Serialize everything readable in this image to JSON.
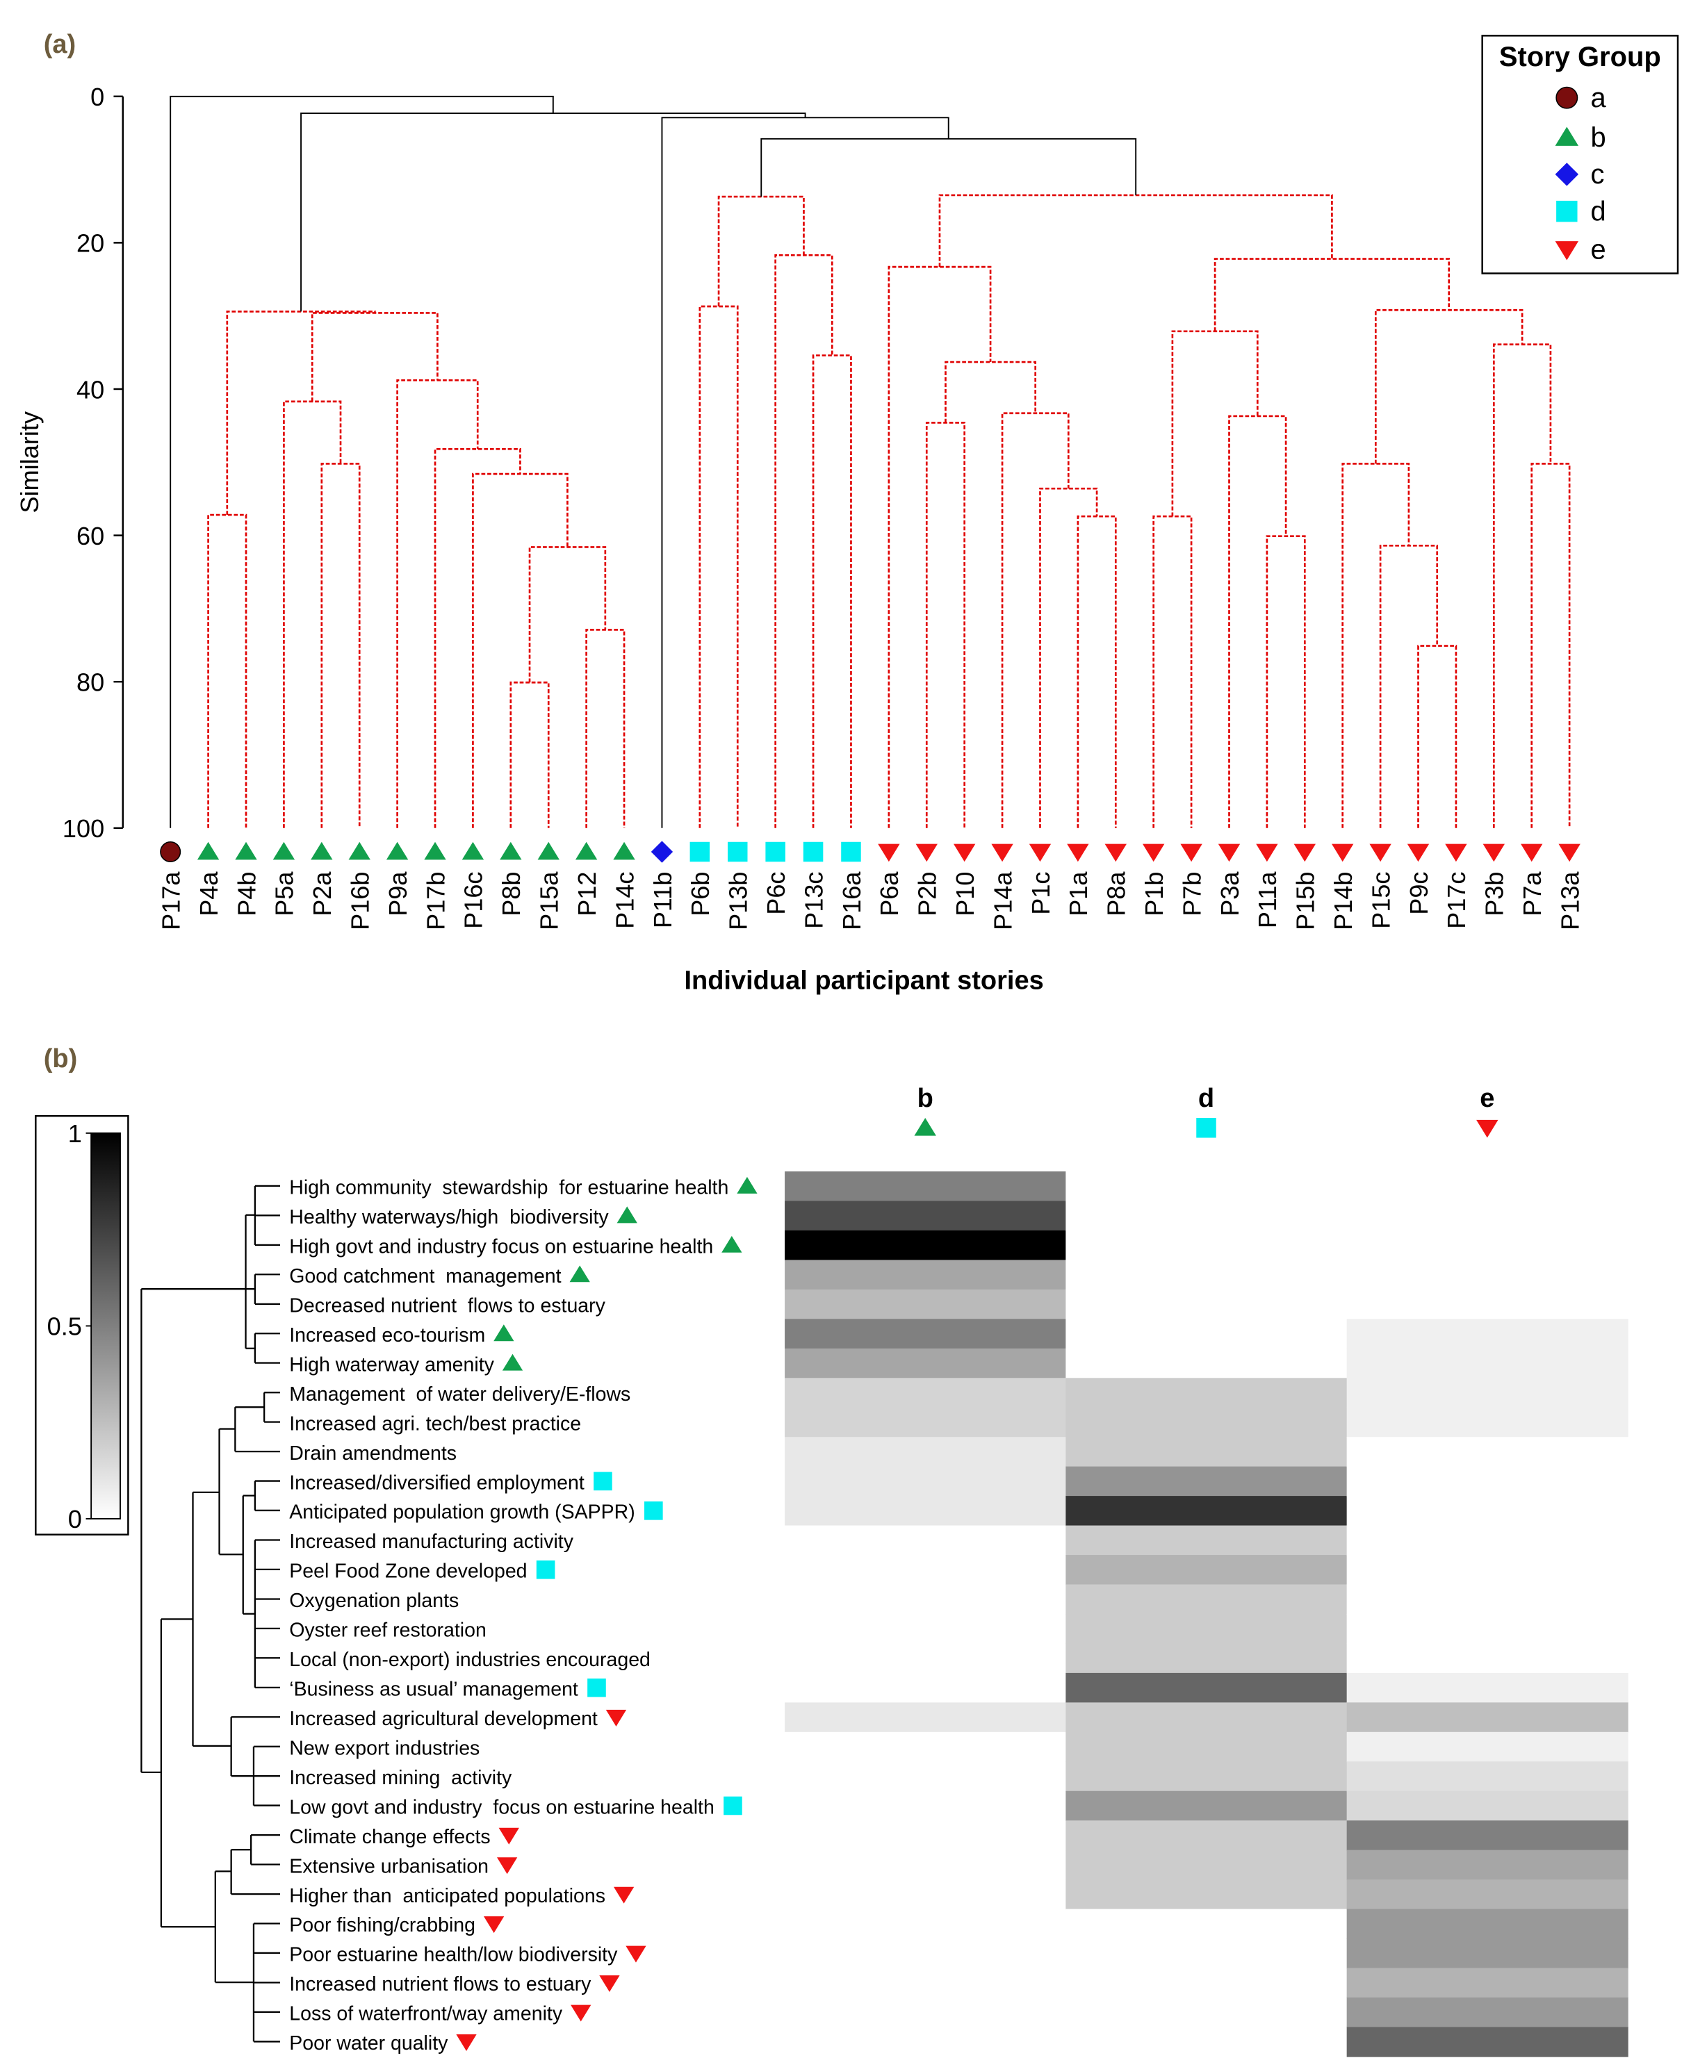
{
  "chart_data": [
    {
      "type": "dendrogram",
      "panel_label": "(a)",
      "ylabel": "Similarity",
      "xlabel": "Individual participant stories",
      "ylim": [
        0,
        100
      ],
      "yticks": [
        0,
        20,
        40,
        60,
        80,
        100
      ],
      "categories": [
        "P17a",
        "P4a",
        "P4b",
        "P5a",
        "P2a",
        "P16b",
        "P9a",
        "P17b",
        "P16c",
        "P8b",
        "P15a",
        "P12",
        "P14c",
        "P11b",
        "P6b",
        "P13b",
        "P6c",
        "P13c",
        "P16a",
        "P6a",
        "P2b",
        "P10",
        "P14a",
        "P1c",
        "P1a",
        "P8a",
        "P1b",
        "P7b",
        "P3a",
        "P11a",
        "P15b",
        "P14b",
        "P15c",
        "P9c",
        "P17c",
        "P3b",
        "P7a",
        "P13a"
      ],
      "leaf_groups": [
        "a",
        "b",
        "b",
        "b",
        "b",
        "b",
        "b",
        "b",
        "b",
        "b",
        "b",
        "b",
        "b",
        "c",
        "d",
        "d",
        "d",
        "d",
        "d",
        "e",
        "e",
        "e",
        "e",
        "e",
        "e",
        "e",
        "e",
        "e",
        "e",
        "e",
        "e",
        "e",
        "e",
        "e",
        "e",
        "e",
        "e",
        "e"
      ],
      "legend": {
        "title": "Story Group",
        "loc": "upper right"
      },
      "groups": [
        {
          "name": "a",
          "color": "#7a0d0d",
          "marker": "circle"
        },
        {
          "name": "b",
          "color": "#12a04c",
          "marker": "triangle-up"
        },
        {
          "name": "c",
          "color": "#1515e6",
          "marker": "diamond"
        },
        {
          "name": "d",
          "color": "#00eef0",
          "marker": "square"
        },
        {
          "name": "e",
          "color": "#f01414",
          "marker": "triangle-down"
        }
      ],
      "merges": [
        {
          "left": 1,
          "right": 2,
          "height": 57.2,
          "color": "#e00000",
          "dashed": true
        },
        {
          "left": 4,
          "right": 5,
          "height": 50.2,
          "color": "#e00000",
          "dashed": true
        },
        {
          "left": 3,
          "right": 39,
          "height": 41.7,
          "color": "#e00000",
          "dashed": true
        },
        {
          "left": 9,
          "right": 10,
          "height": 80.1,
          "color": "#e00000",
          "dashed": true
        },
        {
          "left": 11,
          "right": 12,
          "height": 72.9,
          "color": "#e00000",
          "dashed": true
        },
        {
          "left": 41,
          "right": 42,
          "height": 61.6,
          "color": "#e00000",
          "dashed": true
        },
        {
          "left": 8,
          "right": 43,
          "height": 51.6,
          "color": "#e00000",
          "dashed": true
        },
        {
          "left": 7,
          "right": 44,
          "height": 48.2,
          "color": "#e00000",
          "dashed": true
        },
        {
          "left": 6,
          "right": 45,
          "height": 38.8,
          "color": "#e00000",
          "dashed": true
        },
        {
          "left": 40,
          "right": 46,
          "height": 29.6,
          "color": "#e00000",
          "dashed": true
        },
        {
          "left": 38,
          "right": 47,
          "height": 29.4,
          "color": "#e00000",
          "dashed": true
        },
        {
          "left": 14,
          "right": 15,
          "height": 28.7,
          "color": "#e00000",
          "dashed": true
        },
        {
          "left": 17,
          "right": 18,
          "height": 35.4,
          "color": "#e00000",
          "dashed": true
        },
        {
          "left": 16,
          "right": 50,
          "height": 21.7,
          "color": "#e00000",
          "dashed": true
        },
        {
          "left": 49,
          "right": 51,
          "height": 13.7,
          "color": "#e00000",
          "dashed": true
        },
        {
          "left": 20,
          "right": 21,
          "height": 44.6,
          "color": "#e00000",
          "dashed": true
        },
        {
          "left": 24,
          "right": 25,
          "height": 57.4,
          "color": "#e00000",
          "dashed": true
        },
        {
          "left": 23,
          "right": 54,
          "height": 53.6,
          "color": "#e00000",
          "dashed": true
        },
        {
          "left": 22,
          "right": 55,
          "height": 43.3,
          "color": "#e00000",
          "dashed": true
        },
        {
          "left": 53,
          "right": 56,
          "height": 36.3,
          "color": "#e00000",
          "dashed": true
        },
        {
          "left": 19,
          "right": 57,
          "height": 23.3,
          "color": "#e00000",
          "dashed": true
        },
        {
          "left": 26,
          "right": 27,
          "height": 57.4,
          "color": "#e00000",
          "dashed": true
        },
        {
          "left": 29,
          "right": 30,
          "height": 60.1,
          "color": "#e00000",
          "dashed": true
        },
        {
          "left": 28,
          "right": 60,
          "height": 43.7,
          "color": "#e00000",
          "dashed": true
        },
        {
          "left": 59,
          "right": 61,
          "height": 32.1,
          "color": "#e00000",
          "dashed": true
        },
        {
          "left": 33,
          "right": 34,
          "height": 75.1,
          "color": "#e00000",
          "dashed": true
        },
        {
          "left": 32,
          "right": 63,
          "height": 61.4,
          "color": "#e00000",
          "dashed": true
        },
        {
          "left": 31,
          "right": 64,
          "height": 50.2,
          "color": "#e00000",
          "dashed": true
        },
        {
          "left": 36,
          "right": 37,
          "height": 50.2,
          "color": "#e00000",
          "dashed": true
        },
        {
          "left": 35,
          "right": 66,
          "height": 33.9,
          "color": "#e00000",
          "dashed": true
        },
        {
          "left": 65,
          "right": 67,
          "height": 29.2,
          "color": "#e00000",
          "dashed": true
        },
        {
          "left": 62,
          "right": 68,
          "height": 22.2,
          "color": "#e00000",
          "dashed": true
        },
        {
          "left": 58,
          "right": 69,
          "height": 13.5,
          "color": "#e00000",
          "dashed": true
        },
        {
          "left": 52,
          "right": 70,
          "height": 5.8,
          "color": "#000000",
          "dashed": false
        },
        {
          "left": 13,
          "right": 71,
          "height": 2.9,
          "color": "#000000",
          "dashed": false
        },
        {
          "left": 48,
          "right": 72,
          "height": 2.3,
          "color": "#000000",
          "dashed": false
        },
        {
          "left": 0,
          "right": 73,
          "height": 0,
          "color": "#000000",
          "dashed": false
        }
      ]
    },
    {
      "type": "heatmap",
      "panel_label": "(b)",
      "rows": [
        "High community  stewardship  for estuarine health",
        "Healthy waterways/high  biodiversity",
        "High govt and industry focus on estuarine health",
        "Good catchment  management",
        "Decreased nutrient  flows to estuary",
        "Increased eco-tourism",
        "High waterway amenity",
        "Management  of water delivery/E-flows",
        "Increased agri. tech/best practice",
        "Drain amendments",
        "Increased/diversified employment",
        "Anticipated population growth (SAPPR)",
        "Increased manufacturing activity",
        "Peel Food Zone developed",
        "Oxygenation plants",
        "Oyster reef restoration",
        "Local (non-export) industries encouraged",
        "‘Business as usual’ management",
        "Increased agricultural development",
        "New export industries",
        "Increased mining  activity",
        "Low govt and industry  focus on estuarine health",
        "Climate change effects",
        "Extensive urbanisation",
        "Higher than  anticipated populations",
        "Poor fishing/crabbing",
        "Poor estuarine health/low biodiversity",
        "Increased nutrient flows to estuary",
        "Loss of waterfront/way amenity",
        "Poor water quality"
      ],
      "row_groups": [
        "b",
        "b",
        "b",
        "b",
        null,
        "b",
        "b",
        null,
        null,
        null,
        "d",
        "d",
        null,
        "d",
        null,
        null,
        null,
        "d",
        "e",
        null,
        null,
        "d",
        "e",
        "e",
        "e",
        "e",
        "e",
        "e",
        "e",
        "e"
      ],
      "series": [
        {
          "name": "b",
          "values": [
            0.5,
            0.7,
            1.0,
            0.35,
            0.27,
            0.5,
            0.35,
            0.17,
            0.17,
            0.09,
            0.09,
            0.09,
            0,
            0,
            0,
            0,
            0,
            0,
            0.09,
            0,
            0,
            0,
            0,
            0,
            0,
            0,
            0,
            0,
            0,
            0
          ]
        },
        {
          "name": "d",
          "values": [
            0,
            0,
            0,
            0,
            0,
            0,
            0,
            0.2,
            0.2,
            0.2,
            0.42,
            0.8,
            0.2,
            0.3,
            0.2,
            0.2,
            0.2,
            0.6,
            0.2,
            0.2,
            0.2,
            0.4,
            0.2,
            0.2,
            0.2,
            0,
            0,
            0,
            0,
            0
          ]
        },
        {
          "name": "e",
          "values": [
            0,
            0,
            0,
            0,
            0,
            0.06,
            0.06,
            0.06,
            0.06,
            0,
            0,
            0,
            0,
            0,
            0,
            0,
            0,
            0.06,
            0.25,
            0.06,
            0.12,
            0.15,
            0.5,
            0.35,
            0.3,
            0.4,
            0.4,
            0.3,
            0.4,
            0.6
          ]
        }
      ],
      "clim": [
        0,
        1
      ],
      "cticks": [
        0,
        0.5,
        1
      ]
    }
  ]
}
